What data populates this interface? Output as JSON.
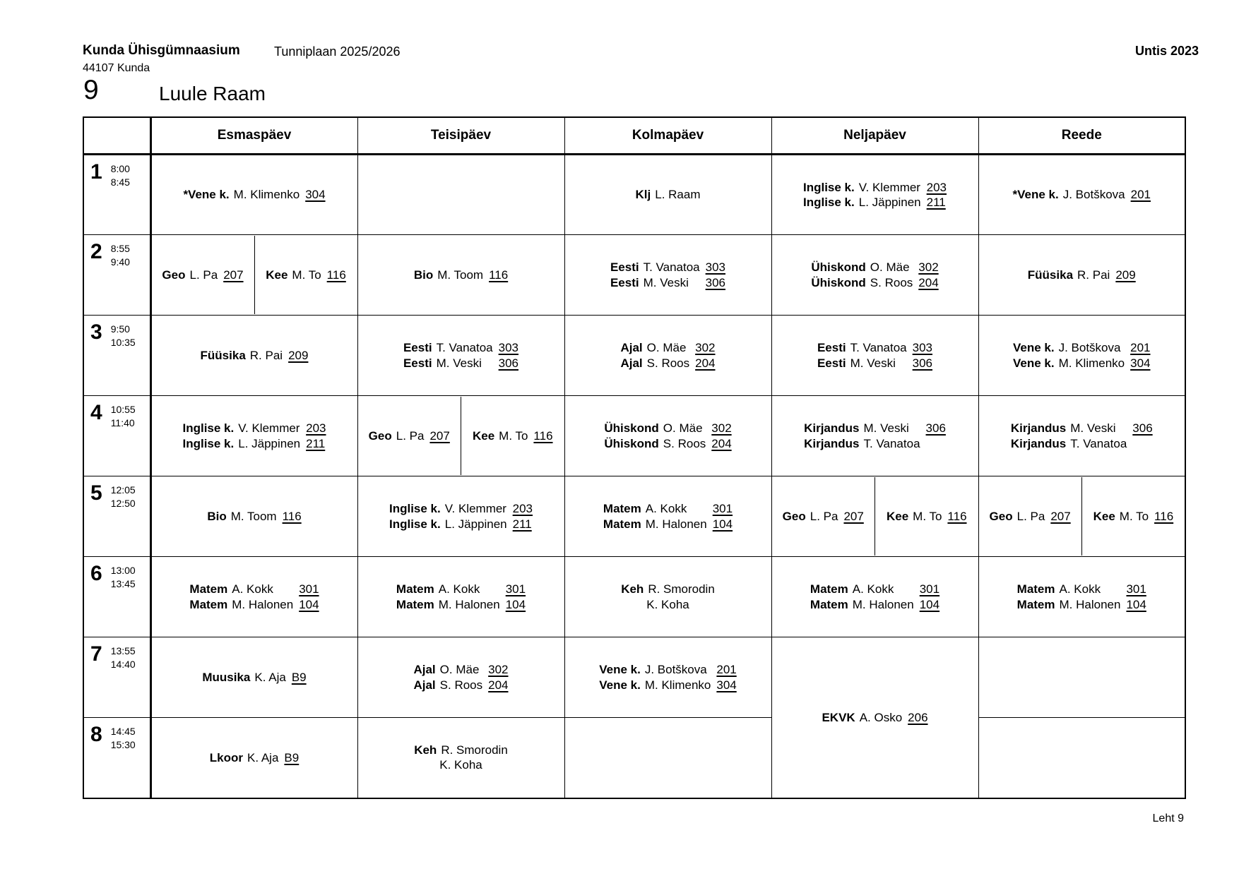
{
  "page": {
    "school_name": "Kunda Ühisgümnaasium",
    "school_address": "44107 Kunda",
    "plan_title": "Tunniplaan 2025/2026",
    "software": "Untis 2023",
    "class_number": "9",
    "class_name": "Luule Raam",
    "page_footer": "Leht 9"
  },
  "timetable": {
    "days": [
      "Esmaspäev",
      "Teisipäev",
      "Kolmapäev",
      "Neljapäev",
      "Reede"
    ],
    "rows": [
      {
        "period": {
          "num": "1",
          "start": "8:00",
          "end": "8:45"
        },
        "cells": [
          {
            "type": "lessons",
            "lines": [
              {
                "s": "*Vene k.",
                "t": "M. Klimenko",
                "r": "304"
              }
            ]
          },
          {
            "type": "empty"
          },
          {
            "type": "lessons",
            "lines": [
              {
                "s": "Klj",
                "t": "L. Raam"
              }
            ]
          },
          {
            "type": "lessons",
            "lines": [
              {
                "s": "Inglise k.",
                "t": "V. Klemmer",
                "r": "203"
              },
              {
                "s": "Inglise k.",
                "t": "L. Jäppinen",
                "r": "211"
              }
            ]
          },
          {
            "type": "lessons",
            "lines": [
              {
                "s": "*Vene k.",
                "t": "J. Botškova",
                "r": "201"
              }
            ]
          }
        ]
      },
      {
        "period": {
          "num": "2",
          "start": "8:55",
          "end": "9:40"
        },
        "cells": [
          {
            "type": "split",
            "left": [
              {
                "s": "Geo",
                "t": "L. Pa",
                "r": "207"
              }
            ],
            "right": [
              {
                "s": "Kee",
                "t": "M. To",
                "r": "116"
              }
            ]
          },
          {
            "type": "lessons",
            "lines": [
              {
                "s": "Bio",
                "t": "M. Toom",
                "r": "116"
              }
            ]
          },
          {
            "type": "lessons",
            "lines": [
              {
                "s": "Eesti",
                "t": "T. Vanatoa",
                "r": "303"
              },
              {
                "s": "Eesti",
                "t": "M. Veski",
                "r": "306"
              }
            ]
          },
          {
            "type": "lessons",
            "lines": [
              {
                "s": "Ühiskond",
                "t": "O. Mäe",
                "r": "302"
              },
              {
                "s": "Ühiskond",
                "t": "S. Roos",
                "r": "204"
              }
            ]
          },
          {
            "type": "lessons",
            "lines": [
              {
                "s": "Füüsika",
                "t": "R. Pai",
                "r": "209"
              }
            ]
          }
        ]
      },
      {
        "period": {
          "num": "3",
          "start": "9:50",
          "end": "10:35"
        },
        "cells": [
          {
            "type": "lessons",
            "lines": [
              {
                "s": "Füüsika",
                "t": "R. Pai",
                "r": "209"
              }
            ]
          },
          {
            "type": "lessons",
            "lines": [
              {
                "s": "Eesti",
                "t": "T. Vanatoa",
                "r": "303"
              },
              {
                "s": "Eesti",
                "t": "M. Veski",
                "r": "306"
              }
            ]
          },
          {
            "type": "lessons",
            "lines": [
              {
                "s": "Ajal",
                "t": "O. Mäe",
                "r": "302"
              },
              {
                "s": "Ajal",
                "t": "S. Roos",
                "r": "204"
              }
            ]
          },
          {
            "type": "lessons",
            "lines": [
              {
                "s": "Eesti",
                "t": "T. Vanatoa",
                "r": "303"
              },
              {
                "s": "Eesti",
                "t": "M. Veski",
                "r": "306"
              }
            ]
          },
          {
            "type": "lessons",
            "lines": [
              {
                "s": "Vene k.",
                "t": "J. Botškova",
                "r": "201"
              },
              {
                "s": "Vene k.",
                "t": "M. Klimenko",
                "r": "304"
              }
            ]
          }
        ]
      },
      {
        "period": {
          "num": "4",
          "start": "10:55",
          "end": "11:40"
        },
        "cells": [
          {
            "type": "lessons",
            "lines": [
              {
                "s": "Inglise k.",
                "t": "V. Klemmer",
                "r": "203"
              },
              {
                "s": "Inglise k.",
                "t": "L. Jäppinen",
                "r": "211"
              }
            ]
          },
          {
            "type": "split",
            "left": [
              {
                "s": "Geo",
                "t": "L. Pa",
                "r": "207"
              }
            ],
            "right": [
              {
                "s": "Kee",
                "t": "M. To",
                "r": "116"
              }
            ]
          },
          {
            "type": "lessons",
            "lines": [
              {
                "s": "Ühiskond",
                "t": "O. Mäe",
                "r": "302"
              },
              {
                "s": "Ühiskond",
                "t": "S. Roos",
                "r": "204"
              }
            ]
          },
          {
            "type": "lessons",
            "lines": [
              {
                "s": "Kirjandus",
                "t": "M. Veski",
                "r": "306"
              },
              {
                "s": "Kirjandus",
                "t": "T. Vanatoa"
              }
            ]
          },
          {
            "type": "lessons",
            "lines": [
              {
                "s": "Kirjandus",
                "t": "M. Veski",
                "r": "306"
              },
              {
                "s": "Kirjandus",
                "t": "T. Vanatoa"
              }
            ]
          }
        ]
      },
      {
        "period": {
          "num": "5",
          "start": "12:05",
          "end": "12:50"
        },
        "cells": [
          {
            "type": "lessons",
            "lines": [
              {
                "s": "Bio",
                "t": "M. Toom",
                "r": "116"
              }
            ]
          },
          {
            "type": "lessons",
            "lines": [
              {
                "s": "Inglise k.",
                "t": "V. Klemmer",
                "r": "203"
              },
              {
                "s": "Inglise k.",
                "t": "L. Jäppinen",
                "r": "211"
              }
            ]
          },
          {
            "type": "lessons",
            "lines": [
              {
                "s": "Matem",
                "t": "A. Kokk",
                "r": "301"
              },
              {
                "s": "Matem",
                "t": "M. Halonen",
                "r": "104"
              }
            ]
          },
          {
            "type": "split",
            "left": [
              {
                "s": "Geo",
                "t": "L. Pa",
                "r": "207"
              }
            ],
            "right": [
              {
                "s": "Kee",
                "t": "M. To",
                "r": "116"
              }
            ]
          },
          {
            "type": "split",
            "left": [
              {
                "s": "Geo",
                "t": "L. Pa",
                "r": "207"
              }
            ],
            "right": [
              {
                "s": "Kee",
                "t": "M. To",
                "r": "116"
              }
            ]
          }
        ]
      },
      {
        "period": {
          "num": "6",
          "start": "13:00",
          "end": "13:45"
        },
        "cells": [
          {
            "type": "lessons",
            "lines": [
              {
                "s": "Matem",
                "t": "A. Kokk",
                "r": "301"
              },
              {
                "s": "Matem",
                "t": "M. Halonen",
                "r": "104"
              }
            ]
          },
          {
            "type": "lessons",
            "lines": [
              {
                "s": "Matem",
                "t": "A. Kokk",
                "r": "301"
              },
              {
                "s": "Matem",
                "t": "M. Halonen",
                "r": "104"
              }
            ]
          },
          {
            "type": "lessons",
            "lines": [
              {
                "s": "Keh",
                "t": "R. Smorodin"
              },
              {
                "c": "K. Koha"
              }
            ]
          },
          {
            "type": "lessons",
            "lines": [
              {
                "s": "Matem",
                "t": "A. Kokk",
                "r": "301"
              },
              {
                "s": "Matem",
                "t": "M. Halonen",
                "r": "104"
              }
            ]
          },
          {
            "type": "lessons",
            "lines": [
              {
                "s": "Matem",
                "t": "A. Kokk",
                "r": "301"
              },
              {
                "s": "Matem",
                "t": "M. Halonen",
                "r": "104"
              }
            ]
          }
        ]
      },
      {
        "period": {
          "num": "7",
          "start": "13:55",
          "end": "14:40"
        },
        "cells": [
          {
            "type": "lessons",
            "lines": [
              {
                "s": "Muusika",
                "t": "K. Aja",
                "r": "B9"
              }
            ]
          },
          {
            "type": "lessons",
            "lines": [
              {
                "s": "Ajal",
                "t": "O. Mäe",
                "r": "302"
              },
              {
                "s": "Ajal",
                "t": "S. Roos",
                "r": "204"
              }
            ]
          },
          {
            "type": "lessons",
            "lines": [
              {
                "s": "Vene k.",
                "t": "J. Botškova",
                "r": "201"
              },
              {
                "s": "Vene k.",
                "t": "M. Klimenko",
                "r": "304"
              }
            ]
          },
          {
            "type": "span2",
            "lines": [
              {
                "s": "EKVK",
                "t": "A. Osko",
                "r": "206"
              }
            ]
          },
          {
            "type": "empty"
          }
        ]
      },
      {
        "period": {
          "num": "8",
          "start": "14:45",
          "end": "15:30"
        },
        "cells": [
          {
            "type": "lessons",
            "lines": [
              {
                "s": "Lkoor",
                "t": "K. Aja",
                "r": "B9"
              }
            ]
          },
          {
            "type": "lessons",
            "lines": [
              {
                "s": "Keh",
                "t": "R. Smorodin"
              },
              {
                "c": "K. Koha"
              }
            ]
          },
          {
            "type": "empty"
          },
          {
            "type": "skip"
          },
          {
            "type": "empty"
          }
        ]
      }
    ]
  }
}
